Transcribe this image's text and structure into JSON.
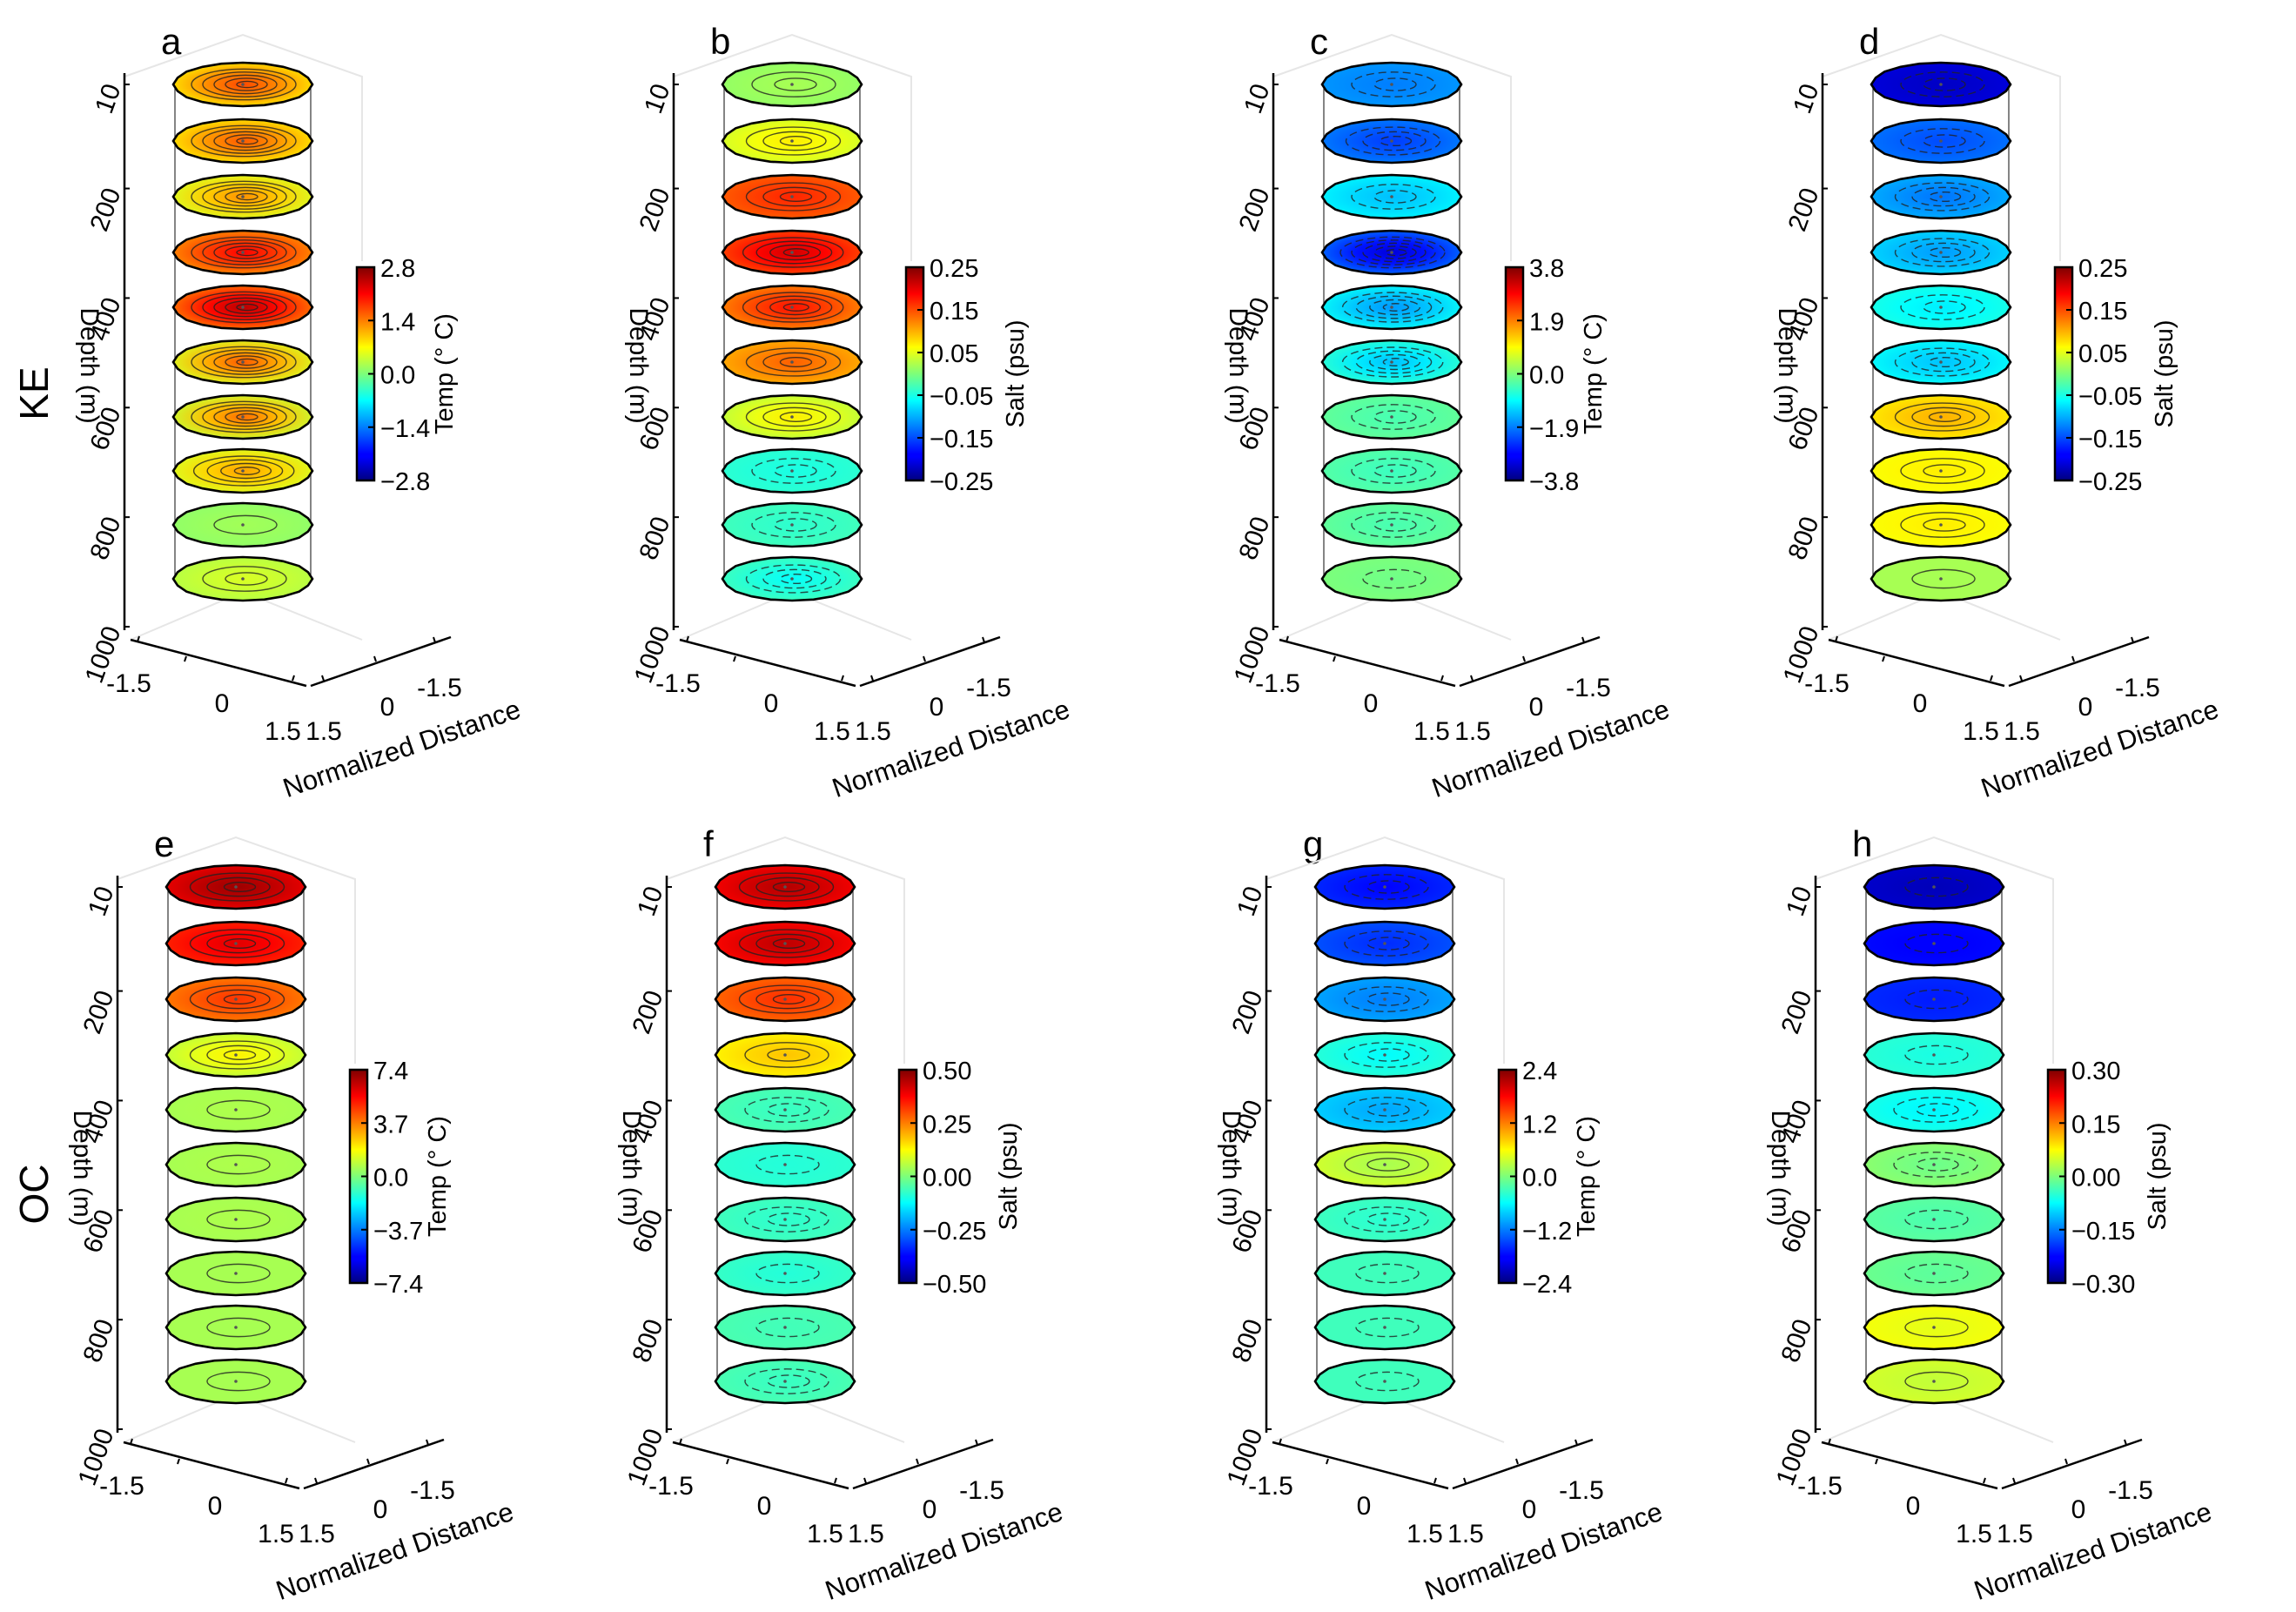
{
  "figure": {
    "row_labels": [
      "KE",
      "OC"
    ],
    "depth_axis_label": "Depth (m)",
    "distance_axis_label": "Normalized Distance",
    "depth_ticks": [
      "10",
      "200",
      "400",
      "600",
      "800",
      "1000"
    ],
    "distance_ticks_left": [
      "-1.5",
      "0",
      "1.5"
    ],
    "distance_ticks_right": [
      "1.5",
      "0",
      "-1.5"
    ]
  },
  "chart_data": [
    {
      "panel": "a",
      "row": "KE",
      "type": "heatmap",
      "variable": "Temp",
      "colorbar_label": "Temp (° C)",
      "colorbar_ticks": [
        "2.8",
        "1.4",
        "0.0",
        "−1.4",
        "−2.8"
      ],
      "vmin": -2.8,
      "vmax": 2.8,
      "contour_style": "solid-positive",
      "depth_levels": [
        10,
        110,
        200,
        300,
        400,
        500,
        600,
        700,
        800,
        900
      ],
      "core_values": [
        1.7,
        1.6,
        1.3,
        2.1,
        2.5,
        1.6,
        1.5,
        1.2,
        0.2,
        0.5
      ],
      "edge_values": [
        0.8,
        0.8,
        0.5,
        1.3,
        1.4,
        0.5,
        0.4,
        0.5,
        0.1,
        0.3
      ]
    },
    {
      "panel": "b",
      "row": "KE",
      "type": "heatmap",
      "variable": "Salt",
      "colorbar_label": "Salt (psu)",
      "colorbar_ticks": [
        "0.25",
        "0.15",
        "0.05",
        "−0.05",
        "−0.15",
        "−0.25"
      ],
      "vmin": -0.25,
      "vmax": 0.25,
      "contour_style": "solid-positive",
      "depth_levels": [
        10,
        110,
        200,
        300,
        400,
        500,
        600,
        700,
        800,
        900
      ],
      "core_values": [
        0.02,
        0.07,
        0.17,
        0.21,
        0.18,
        0.14,
        0.07,
        -0.05,
        -0.04,
        -0.06
      ],
      "edge_values": [
        0.01,
        0.04,
        0.14,
        0.15,
        0.12,
        0.1,
        0.03,
        -0.04,
        -0.03,
        -0.03
      ]
    },
    {
      "panel": "c",
      "row": "KE",
      "type": "heatmap",
      "variable": "Temp",
      "colorbar_label": "Temp (° C)",
      "colorbar_ticks": [
        "3.8",
        "1.9",
        "0.0",
        "−1.9",
        "−3.8"
      ],
      "vmin": -3.8,
      "vmax": 3.8,
      "contour_style": "dashed-negative",
      "depth_levels": [
        10,
        110,
        200,
        300,
        400,
        500,
        600,
        700,
        800,
        900
      ],
      "core_values": [
        -1.9,
        -2.4,
        -1.4,
        -3.2,
        -1.7,
        -1.4,
        -0.4,
        -0.5,
        -0.4,
        -0.1
      ],
      "edge_values": [
        -1.7,
        -1.9,
        -1.0,
        -2.0,
        -0.9,
        -0.6,
        -0.2,
        -0.3,
        -0.2,
        0.0
      ]
    },
    {
      "panel": "d",
      "row": "KE",
      "type": "heatmap",
      "variable": "Salt",
      "colorbar_label": "Salt (psu)",
      "colorbar_ticks": [
        "0.25",
        "0.15",
        "0.05",
        "−0.05",
        "−0.15",
        "−0.25"
      ],
      "vmin": -0.25,
      "vmax": 0.25,
      "contour_style": "dashed-negative",
      "depth_levels": [
        10,
        110,
        200,
        300,
        400,
        500,
        600,
        700,
        800,
        900
      ],
      "core_values": [
        -0.22,
        -0.15,
        -0.13,
        -0.11,
        -0.07,
        -0.09,
        0.1,
        0.07,
        0.07,
        0.02
      ],
      "edge_values": [
        -0.21,
        -0.13,
        -0.1,
        -0.08,
        -0.05,
        -0.06,
        0.07,
        0.06,
        0.06,
        0.02
      ]
    },
    {
      "panel": "e",
      "row": "OC",
      "type": "heatmap",
      "variable": "Temp",
      "colorbar_label": "Temp (° C)",
      "colorbar_ticks": [
        "7.4",
        "3.7",
        "0.0",
        "−3.7",
        "−7.4"
      ],
      "vmin": -7.4,
      "vmax": 7.4,
      "contour_style": "solid-positive",
      "depth_levels": [
        10,
        110,
        200,
        300,
        400,
        500,
        600,
        700,
        800,
        900
      ],
      "core_values": [
        7.0,
        6.0,
        4.8,
        2.0,
        0.7,
        0.7,
        0.7,
        0.6,
        0.6,
        0.6
      ],
      "edge_values": [
        5.8,
        5.0,
        3.7,
        0.9,
        0.6,
        0.6,
        0.6,
        0.6,
        0.6,
        0.6
      ]
    },
    {
      "panel": "f",
      "row": "OC",
      "type": "heatmap",
      "variable": "Salt",
      "colorbar_label": "Salt (psu)",
      "colorbar_ticks": [
        "0.50",
        "0.25",
        "0.00",
        "−0.25",
        "−0.50"
      ],
      "vmin": -0.5,
      "vmax": 0.5,
      "contour_style": "solid-positive",
      "depth_levels": [
        10,
        110,
        200,
        300,
        400,
        500,
        600,
        700,
        800,
        900
      ],
      "core_values": [
        0.45,
        0.44,
        0.33,
        0.18,
        -0.07,
        -0.09,
        -0.08,
        -0.09,
        -0.06,
        -0.07
      ],
      "edge_values": [
        0.38,
        0.37,
        0.27,
        0.13,
        -0.05,
        -0.08,
        -0.06,
        -0.07,
        -0.05,
        -0.05
      ]
    },
    {
      "panel": "g",
      "row": "OC",
      "type": "heatmap",
      "variable": "Temp",
      "colorbar_label": "Temp (° C)",
      "colorbar_ticks": [
        "2.4",
        "1.2",
        "0.0",
        "−1.2",
        "−2.4"
      ],
      "vmin": -2.4,
      "vmax": 2.4,
      "contour_style": "dashed-negative",
      "depth_levels": [
        10,
        110,
        200,
        300,
        400,
        500,
        600,
        700,
        800,
        900
      ],
      "core_values": [
        -1.8,
        -1.6,
        -1.2,
        -0.6,
        -1.0,
        0.2,
        -0.4,
        -0.3,
        -0.3,
        -0.3
      ],
      "edge_values": [
        -1.6,
        -1.4,
        -1.0,
        -0.4,
        -0.8,
        0.4,
        -0.3,
        -0.3,
        -0.3,
        -0.3
      ]
    },
    {
      "panel": "h",
      "row": "OC",
      "type": "heatmap",
      "variable": "Salt",
      "colorbar_label": "Salt (psu)",
      "colorbar_ticks": [
        "0.30",
        "0.15",
        "0.00",
        "−0.15",
        "−0.30"
      ],
      "vmin": -0.3,
      "vmax": 0.3,
      "contour_style": "dashed-negative",
      "depth_levels": [
        10,
        110,
        200,
        300,
        400,
        500,
        600,
        700,
        800,
        900
      ],
      "core_values": [
        -0.27,
        -0.23,
        -0.21,
        -0.06,
        -0.08,
        -0.01,
        -0.03,
        -0.02,
        0.06,
        0.04
      ],
      "edge_values": [
        -0.26,
        -0.22,
        -0.2,
        -0.05,
        -0.06,
        0.01,
        -0.02,
        -0.01,
        0.07,
        0.05
      ]
    }
  ]
}
